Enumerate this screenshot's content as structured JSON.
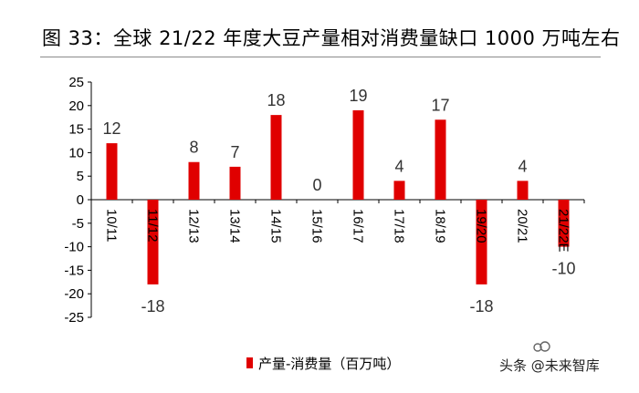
{
  "title": "图 33：全球 21/22 年度大豆产量相对消费量缺口 1000 万吨左右",
  "watermark": "头条 @未来智库",
  "colors": {
    "bar": "#e00000",
    "axis": "#000000",
    "rule": "#8a8a8a"
  },
  "chart_data": {
    "type": "bar",
    "categories": [
      "10/11",
      "11/12",
      "12/13",
      "13/14",
      "14/15",
      "15/16",
      "16/17",
      "17/18",
      "18/19",
      "19/20",
      "20/21",
      "21/22E"
    ],
    "series": [
      {
        "name": "产量-消费量（百万吨）",
        "values": [
          12,
          -18,
          8,
          7,
          18,
          0,
          19,
          4,
          17,
          -18,
          4,
          -10
        ]
      }
    ],
    "data_labels": [
      "12",
      "-18",
      "8",
      "7",
      "18",
      "0",
      "19",
      "4",
      "17",
      "-18",
      "4",
      "-10"
    ],
    "ylim": [
      -25,
      25
    ],
    "yticks": [
      25,
      20,
      15,
      10,
      5,
      0,
      -5,
      -10,
      -15,
      -20,
      -25
    ],
    "grid": false,
    "legend": "bottom-center",
    "xlabel": "",
    "ylabel": ""
  }
}
